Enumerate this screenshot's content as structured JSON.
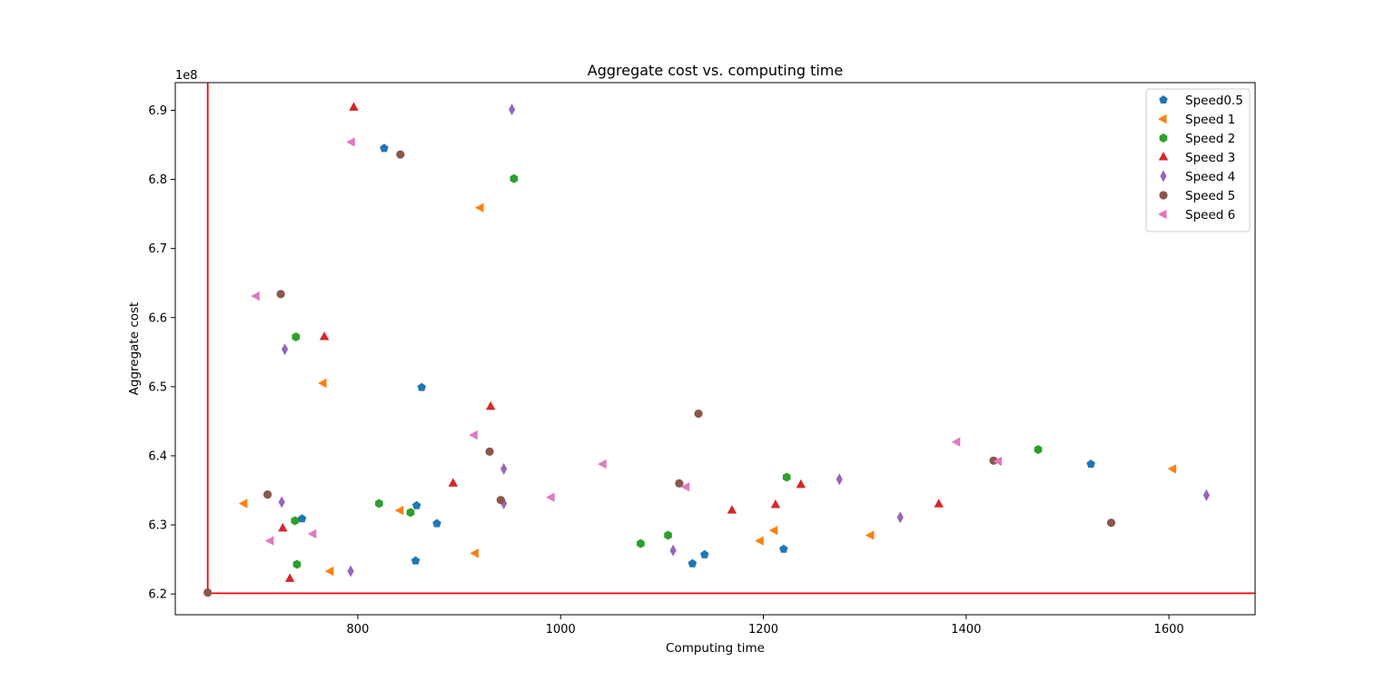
{
  "chart_data": {
    "type": "scatter",
    "title": "Aggregate cost vs. computing time",
    "xlabel": "Computing time",
    "ylabel": "Aggregate cost",
    "y_offset_label": "1e8",
    "xlim": [
      620,
      1685
    ],
    "ylim": [
      6.17,
      6.94
    ],
    "x_ticks": [
      800,
      1000,
      1200,
      1400,
      1600
    ],
    "y_ticks": [
      6.2,
      6.3,
      6.4,
      6.5,
      6.6,
      6.7,
      6.8,
      6.9
    ],
    "y_tick_labels": [
      "6.2",
      "6.3",
      "6.4",
      "6.5",
      "6.6",
      "6.7",
      "6.8",
      "6.9"
    ],
    "grid": false,
    "legend_position": "top-right",
    "reference_lines": {
      "color": "#ff0000",
      "vertical_x": 652,
      "horizontal_y": 6.201
    },
    "series": [
      {
        "name": "Speed0.5",
        "marker": "pentagon",
        "color": "#1f77b4",
        "points": [
          [
            826,
            6.845
          ],
          [
            863,
            6.499
          ],
          [
            745,
            6.309
          ],
          [
            858,
            6.328
          ],
          [
            878,
            6.302
          ],
          [
            857,
            6.248
          ],
          [
            1130,
            6.244
          ],
          [
            1142,
            6.257
          ],
          [
            1220,
            6.265
          ],
          [
            1523,
            6.388
          ]
        ]
      },
      {
        "name": "Speed 1",
        "marker": "triangle-left",
        "color": "#ff7f0e",
        "points": [
          [
            921,
            6.759
          ],
          [
            766,
            6.505
          ],
          [
            688,
            6.331
          ],
          [
            842,
            6.321
          ],
          [
            773,
            6.233
          ],
          [
            916,
            6.259
          ],
          [
            1197,
            6.277
          ],
          [
            1211,
            6.292
          ],
          [
            1306,
            6.285
          ],
          [
            1604,
            6.381
          ]
        ]
      },
      {
        "name": "Speed 2",
        "marker": "hexagon",
        "color": "#2ca02c",
        "points": [
          [
            954,
            6.801
          ],
          [
            739,
            6.572
          ],
          [
            738,
            6.306
          ],
          [
            821,
            6.331
          ],
          [
            852,
            6.318
          ],
          [
            740,
            6.243
          ],
          [
            1079,
            6.273
          ],
          [
            1106,
            6.285
          ],
          [
            1223,
            6.369
          ],
          [
            1471,
            6.409
          ]
        ]
      },
      {
        "name": "Speed 3",
        "marker": "triangle-up",
        "color": "#d62728",
        "points": [
          [
            796,
            6.904
          ],
          [
            767,
            6.572
          ],
          [
            931,
            6.471
          ],
          [
            894,
            6.36
          ],
          [
            726,
            6.295
          ],
          [
            733,
            6.222
          ],
          [
            1169,
            6.321
          ],
          [
            1212,
            6.329
          ],
          [
            1237,
            6.358
          ],
          [
            1373,
            6.33
          ]
        ]
      },
      {
        "name": "Speed 4",
        "marker": "thin-diamond",
        "color": "#9467bd",
        "points": [
          [
            952,
            6.901
          ],
          [
            728,
            6.554
          ],
          [
            725,
            6.333
          ],
          [
            944,
            6.381
          ],
          [
            944,
            6.331
          ],
          [
            793,
            6.233
          ],
          [
            1111,
            6.263
          ],
          [
            1275,
            6.366
          ],
          [
            1335,
            6.311
          ],
          [
            1637,
            6.343
          ]
        ]
      },
      {
        "name": "Speed 5",
        "marker": "circle",
        "color": "#8c564b",
        "points": [
          [
            842,
            6.836
          ],
          [
            724,
            6.634
          ],
          [
            711,
            6.344
          ],
          [
            930,
            6.406
          ],
          [
            941,
            6.336
          ],
          [
            652,
            6.202
          ],
          [
            1136,
            6.461
          ],
          [
            1117,
            6.36
          ],
          [
            1427,
            6.393
          ],
          [
            1543,
            6.303
          ]
        ]
      },
      {
        "name": "Speed 6",
        "marker": "triangle-left",
        "color": "#e377c2",
        "points": [
          [
            794,
            6.854
          ],
          [
            700,
            6.631
          ],
          [
            915,
            6.43
          ],
          [
            1042,
            6.388
          ],
          [
            991,
            6.34
          ],
          [
            756,
            6.287
          ],
          [
            714,
            6.277
          ],
          [
            1124,
            6.355
          ],
          [
            1391,
            6.42
          ],
          [
            1432,
            6.392
          ]
        ]
      }
    ]
  }
}
